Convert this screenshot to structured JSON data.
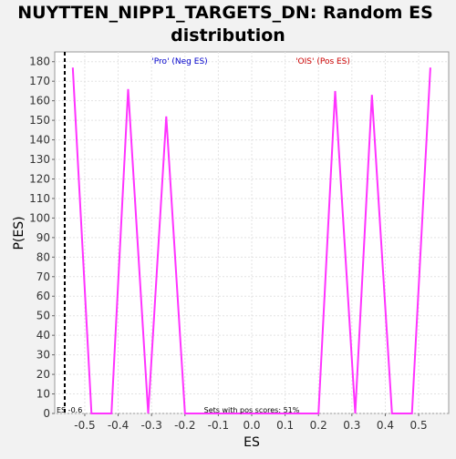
{
  "chart_data": {
    "type": "line",
    "title_line1": "NUYTTEN_NIPP1_TARGETS_DN: Random ES",
    "title_line2": "distribution",
    "xlabel": "ES",
    "ylabel": "P(ES)",
    "xlim": [
      -0.59,
      0.59
    ],
    "ylim": [
      0,
      185
    ],
    "x_ticks": [
      -0.5,
      -0.4,
      -0.3,
      -0.2,
      -0.1,
      0.0,
      0.1,
      0.2,
      0.3,
      0.4,
      0.5
    ],
    "x_tick_labels": [
      "-0.5",
      "-0.4",
      "-0.3",
      "-0.2",
      "-0.1",
      "0.0",
      "0.1",
      "0.2",
      "0.3",
      "0.4",
      "0.5"
    ],
    "y_ticks": [
      0,
      10,
      20,
      30,
      40,
      50,
      60,
      70,
      80,
      90,
      100,
      110,
      120,
      130,
      140,
      150,
      160,
      170,
      180
    ],
    "grid": true,
    "series": [
      {
        "color": "#ff33ff",
        "x": [
          -0.536,
          -0.48,
          -0.42,
          -0.37,
          -0.31,
          -0.256,
          -0.2,
          0.2,
          0.25,
          0.31,
          0.36,
          0.42,
          0.48,
          0.535
        ],
        "y": [
          177,
          0,
          0,
          166,
          0,
          152,
          0,
          0,
          165,
          0,
          163,
          0,
          0,
          177
        ]
      }
    ],
    "reference_line": {
      "x": -0.56,
      "color": "#000000",
      "style": "dashed"
    },
    "annotations": {
      "neg_label": "'Pro' (Neg ES)",
      "neg_color": "#0000cc",
      "pos_label": "'OIS' (Pos ES)",
      "pos_color": "#cc0000",
      "es_label": "ES -0.6",
      "sets_label": "Sets with pos scores: 51%"
    }
  }
}
